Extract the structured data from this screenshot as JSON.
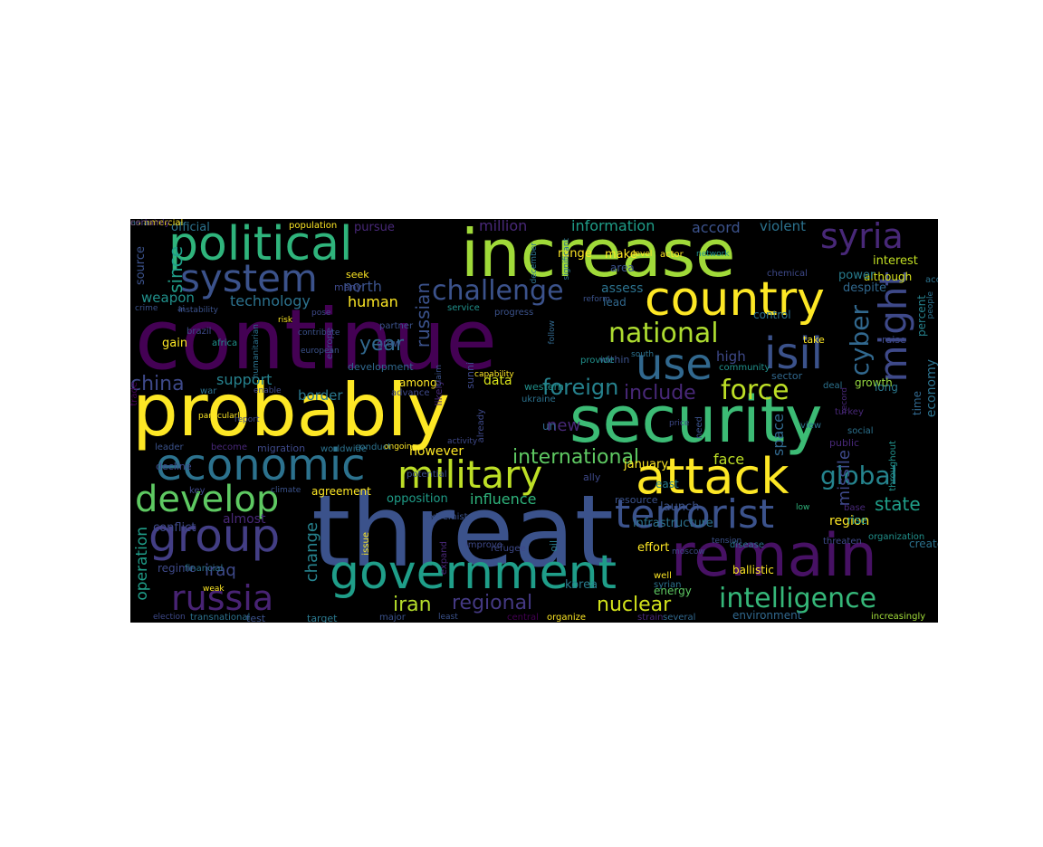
{
  "colors": {
    "background": "#000000",
    "page": "#ffffff"
  },
  "words": [
    {
      "text": "continue",
      "color": "#440154"
    },
    {
      "text": "threat",
      "color": "#3b528b"
    },
    {
      "text": "probably",
      "color": "#fde725"
    },
    {
      "text": "security",
      "color": "#3cbb75"
    },
    {
      "text": "increase",
      "color": "#a0da39"
    },
    {
      "text": "remain",
      "color": "#471164"
    },
    {
      "text": "political",
      "color": "#2fb47c"
    },
    {
      "text": "government",
      "color": "#1f9e89"
    },
    {
      "text": "economic",
      "color": "#2c728e"
    },
    {
      "text": "attack",
      "color": "#fde725"
    },
    {
      "text": "country",
      "color": "#fde725"
    },
    {
      "text": "terrorist",
      "color": "#3b528b"
    },
    {
      "text": "group",
      "color": "#433e85"
    },
    {
      "text": "military",
      "color": "#bddf26"
    },
    {
      "text": "develop",
      "color": "#5ec962"
    },
    {
      "text": "use",
      "color": "#31688e"
    },
    {
      "text": "isil",
      "color": "#3b528b"
    },
    {
      "text": "system",
      "color": "#3b528b"
    },
    {
      "text": "russia",
      "color": "#482374"
    },
    {
      "text": "intelligence",
      "color": "#35b779"
    },
    {
      "text": "syria",
      "color": "#482878"
    },
    {
      "text": "might",
      "color": "#3e4989"
    },
    {
      "text": "challenge",
      "color": "#3b528b"
    },
    {
      "text": "national",
      "color": "#addc30"
    },
    {
      "text": "force",
      "color": "#bddf26"
    },
    {
      "text": "global",
      "color": "#25848e"
    },
    {
      "text": "cyber",
      "color": "#31688e"
    },
    {
      "text": "include",
      "color": "#482878"
    },
    {
      "text": "international",
      "color": "#5ec962"
    },
    {
      "text": "foreign",
      "color": "#26828e"
    },
    {
      "text": "china",
      "color": "#3e4989"
    },
    {
      "text": "iran",
      "color": "#b5de2b"
    },
    {
      "text": "regional",
      "color": "#443983"
    },
    {
      "text": "nuclear",
      "color": "#d2e21b"
    },
    {
      "text": "state",
      "color": "#1f9e89"
    },
    {
      "text": "since",
      "color": "#1f9e89"
    },
    {
      "text": "russian",
      "color": "#3b528b"
    },
    {
      "text": "iraq",
      "color": "#3e4989"
    },
    {
      "text": "change",
      "color": "#26828e"
    },
    {
      "text": "influence",
      "color": "#2fb47c"
    },
    {
      "text": "year",
      "color": "#31688e"
    },
    {
      "text": "missile",
      "color": "#3e4989"
    },
    {
      "text": "support",
      "color": "#26828e"
    },
    {
      "text": "economy",
      "color": "#2c728e"
    },
    {
      "text": "face",
      "color": "#bddf26"
    },
    {
      "text": "space",
      "color": "#31688e"
    },
    {
      "text": "new",
      "color": "#482878"
    },
    {
      "text": "operation",
      "color": "#1f9e89"
    },
    {
      "text": "border",
      "color": "#2a788e"
    },
    {
      "text": "north",
      "color": "#3b528b"
    },
    {
      "text": "technology",
      "color": "#2c728e"
    },
    {
      "text": "human",
      "color": "#fde725"
    },
    {
      "text": "region",
      "color": "#fde725"
    },
    {
      "text": "however",
      "color": "#fde725"
    },
    {
      "text": "million",
      "color": "#482878"
    },
    {
      "text": "information",
      "color": "#1f9e89"
    },
    {
      "text": "accord",
      "color": "#3b528b"
    },
    {
      "text": "violent",
      "color": "#2c728e"
    },
    {
      "text": "official",
      "color": "#2c728e"
    },
    {
      "text": "weapon",
      "color": "#21918c"
    },
    {
      "text": "data",
      "color": "#d8e219"
    },
    {
      "text": "high",
      "color": "#3e4989"
    },
    {
      "text": "opposition",
      "color": "#1f9e89"
    },
    {
      "text": "among",
      "color": "#fde725"
    },
    {
      "text": "almost",
      "color": "#482878"
    },
    {
      "text": "conflict",
      "color": "#3e4989"
    },
    {
      "text": "un",
      "color": "#31688e"
    },
    {
      "text": "growth",
      "color": "#95d840"
    },
    {
      "text": "interest",
      "color": "#c2df23"
    },
    {
      "text": "although",
      "color": "#d8e219"
    },
    {
      "text": "power",
      "color": "#287c8e"
    },
    {
      "text": "despite",
      "color": "#31688e"
    },
    {
      "text": "control",
      "color": "#2c728e"
    },
    {
      "text": "gain",
      "color": "#fde725"
    },
    {
      "text": "agreement",
      "color": "#fde725"
    },
    {
      "text": "regime",
      "color": "#3e4989"
    },
    {
      "text": "effort",
      "color": "#fde725"
    },
    {
      "text": "korea",
      "color": "#287c8e"
    },
    {
      "text": "energy",
      "color": "#5ec962"
    },
    {
      "text": "environment",
      "color": "#31688e"
    },
    {
      "text": "increasingly",
      "color": "#a0da39"
    },
    {
      "text": "test",
      "color": "#3b528b"
    },
    {
      "text": "target",
      "color": "#2a788e"
    },
    {
      "text": "transnational",
      "color": "#2c728e"
    },
    {
      "text": "election",
      "color": "#3e4989"
    },
    {
      "text": "major",
      "color": "#3b528b"
    },
    {
      "text": "least",
      "color": "#3b528b"
    },
    {
      "text": "central",
      "color": "#440154"
    },
    {
      "text": "organize",
      "color": "#fde725"
    },
    {
      "text": "strain",
      "color": "#482878"
    },
    {
      "text": "several",
      "color": "#31688e"
    },
    {
      "text": "assess",
      "color": "#2c728e"
    },
    {
      "text": "lead",
      "color": "#31688e"
    },
    {
      "text": "range",
      "color": "#fde725"
    },
    {
      "text": "make",
      "color": "#fde725"
    },
    {
      "text": "area",
      "color": "#3b528b"
    },
    {
      "text": "level",
      "color": "#fde725"
    },
    {
      "text": "actor",
      "color": "#fde725"
    },
    {
      "text": "network",
      "color": "#21918c"
    },
    {
      "text": "chemical",
      "color": "#3e4989"
    },
    {
      "text": "access",
      "color": "#2c728e"
    },
    {
      "text": "people",
      "color": "#2c728e"
    },
    {
      "text": "percent",
      "color": "#26828e"
    },
    {
      "text": "raise",
      "color": "#3e4989"
    },
    {
      "text": "take",
      "color": "#fde725"
    },
    {
      "text": "community",
      "color": "#21918c"
    },
    {
      "text": "within",
      "color": "#3b528b"
    },
    {
      "text": "south",
      "color": "#2c728e"
    },
    {
      "text": "sector",
      "color": "#31688e"
    },
    {
      "text": "deal",
      "color": "#2c728e"
    },
    {
      "text": "record",
      "color": "#482878"
    },
    {
      "text": "long",
      "color": "#2a788e"
    },
    {
      "text": "turkey",
      "color": "#482878"
    },
    {
      "text": "social",
      "color": "#2c728e"
    },
    {
      "text": "public",
      "color": "#482878"
    },
    {
      "text": "view",
      "color": "#2c728e"
    },
    {
      "text": "price",
      "color": "#3e4989"
    },
    {
      "text": "need",
      "color": "#3b528b"
    },
    {
      "text": "time",
      "color": "#31688e"
    },
    {
      "text": "throughout",
      "color": "#21918c"
    },
    {
      "text": "organization",
      "color": "#21918c"
    },
    {
      "text": "create",
      "color": "#2c728e"
    },
    {
      "text": "rise",
      "color": "#21918c"
    },
    {
      "text": "base",
      "color": "#482878"
    },
    {
      "text": "low",
      "color": "#2fb47c"
    },
    {
      "text": "threaten",
      "color": "#3e4989"
    },
    {
      "text": "tension",
      "color": "#3b528b"
    },
    {
      "text": "disease",
      "color": "#2c728e"
    },
    {
      "text": "ballistic",
      "color": "#fde725"
    },
    {
      "text": "moscow",
      "color": "#3e4989"
    },
    {
      "text": "launch",
      "color": "#3b528b"
    },
    {
      "text": "resource",
      "color": "#3b528b"
    },
    {
      "text": "infrastructure",
      "color": "#2c728e"
    },
    {
      "text": "east",
      "color": "#287c8e"
    },
    {
      "text": "ally",
      "color": "#3e4989"
    },
    {
      "text": "january",
      "color": "#fde725"
    },
    {
      "text": "well",
      "color": "#fde725"
    },
    {
      "text": "syrian",
      "color": "#2c728e"
    },
    {
      "text": "oil",
      "color": "#287c8e"
    },
    {
      "text": "refugee",
      "color": "#3e4989"
    },
    {
      "text": "improve",
      "color": "#3e4989"
    },
    {
      "text": "expand",
      "color": "#482878"
    },
    {
      "text": "issue",
      "color": "#fde725"
    },
    {
      "text": "activity",
      "color": "#3e4989"
    },
    {
      "text": "potential",
      "color": "#3b528b"
    },
    {
      "text": "ongoing",
      "color": "#fde725"
    },
    {
      "text": "conduct",
      "color": "#2c728e"
    },
    {
      "text": "worldwide",
      "color": "#2c728e"
    },
    {
      "text": "migration",
      "color": "#3e4989"
    },
    {
      "text": "become",
      "color": "#482878"
    },
    {
      "text": "leader",
      "color": "#3b528b"
    },
    {
      "text": "decline",
      "color": "#3e4989"
    },
    {
      "text": "key",
      "color": "#3e4989"
    },
    {
      "text": "climate",
      "color": "#3b528b"
    },
    {
      "text": "financial",
      "color": "#2c728e"
    },
    {
      "text": "weak",
      "color": "#fde725"
    },
    {
      "text": "extremist",
      "color": "#3b528b"
    },
    {
      "text": "trade",
      "color": "#440154"
    },
    {
      "text": "particularly",
      "color": "#fde725"
    },
    {
      "text": "report",
      "color": "#3e4989"
    },
    {
      "text": "war",
      "color": "#2c728e"
    },
    {
      "text": "enable",
      "color": "#3e4989"
    },
    {
      "text": "likely",
      "color": "#482878"
    },
    {
      "text": "development",
      "color": "#31688e"
    },
    {
      "text": "advance",
      "color": "#3e4989"
    },
    {
      "text": "claim",
      "color": "#3b528b"
    },
    {
      "text": "already",
      "color": "#3e4989"
    },
    {
      "text": "sunni",
      "color": "#3e4989"
    },
    {
      "text": "capability",
      "color": "#fde725"
    },
    {
      "text": "ukraine",
      "color": "#2c728e"
    },
    {
      "text": "western",
      "color": "#21918c"
    },
    {
      "text": "provide",
      "color": "#21918c"
    },
    {
      "text": "follow",
      "color": "#31688e"
    },
    {
      "text": "progress",
      "color": "#3b528b"
    },
    {
      "text": "service",
      "color": "#21918c"
    },
    {
      "text": "december",
      "color": "#2c728e"
    },
    {
      "text": "significant",
      "color": "#2c728e"
    },
    {
      "text": "reform",
      "color": "#3b528b"
    },
    {
      "text": "partner",
      "color": "#3b528b"
    },
    {
      "text": "grow",
      "color": "#3b528b"
    },
    {
      "text": "contribute",
      "color": "#3b528b"
    },
    {
      "text": "european",
      "color": "#3b528b"
    },
    {
      "text": "europe",
      "color": "#3e4989"
    },
    {
      "text": "many",
      "color": "#3e4989"
    },
    {
      "text": "seek",
      "color": "#fde725"
    },
    {
      "text": "pose",
      "color": "#3e4989"
    },
    {
      "text": "risk",
      "color": "#fde725"
    },
    {
      "text": "africa",
      "color": "#21918c"
    },
    {
      "text": "humanitarian",
      "color": "#2c728e"
    },
    {
      "text": "brazil",
      "color": "#3e4989"
    },
    {
      "text": "ai",
      "color": "#3b528b"
    },
    {
      "text": "crime",
      "color": "#3b528b"
    },
    {
      "text": "instability",
      "color": "#3b528b"
    },
    {
      "text": "source",
      "color": "#3b528b"
    },
    {
      "text": "population",
      "color": "#fde725"
    },
    {
      "text": "pursue",
      "color": "#482878"
    },
    {
      "text": "asia",
      "color": "#31688e"
    },
    {
      "text": "commercial",
      "color": "#fde725"
    },
    {
      "text": "certainly",
      "color": "#482878"
    }
  ]
}
